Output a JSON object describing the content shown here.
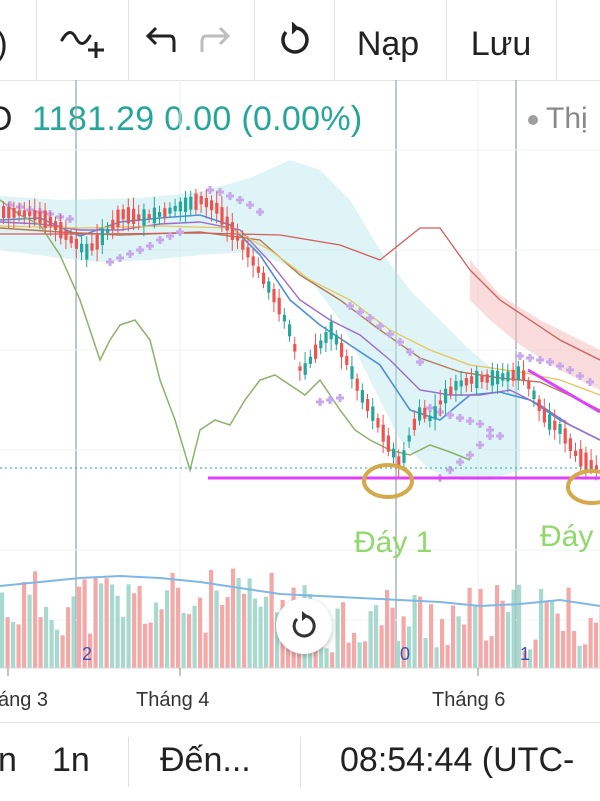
{
  "toolbar": {
    "indicators_icon": "indicators-add-icon",
    "undo_icon": "undo-icon",
    "redo_icon": "redo-icon",
    "reload_icon": "reload-icon",
    "load_label": "Nạp",
    "save_label": "Lưu",
    "left_clip": ")"
  },
  "header": {
    "left_clip": "O",
    "price_text": "1181.29 0.00 (0.00%)",
    "legend_text": "Thị"
  },
  "chart_data": {
    "type": "candlestick",
    "x_tick_labels": [
      "áng 3",
      "Tháng 4",
      "Tháng 6"
    ],
    "annotations": [
      "Đáy 1",
      "Đáy"
    ],
    "pane_numbers": [
      "2",
      "0",
      "1"
    ],
    "support_line_value": 1181.29,
    "colors": {
      "up": "#26a69a",
      "down": "#ef5350",
      "support": "#e040fb",
      "circle": "#d4a94a",
      "label": "#8ed96a"
    }
  },
  "bottom": {
    "range_1": "n",
    "range_2": "1n",
    "goto_label": "Đến...",
    "clock": "08:54:44 (UTC-"
  },
  "reset_icon": "reset-chart-icon"
}
